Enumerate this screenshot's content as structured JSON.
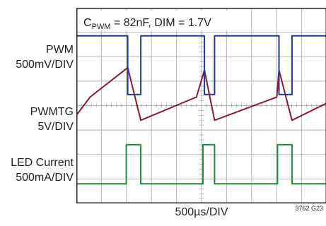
{
  "chart_data": {
    "type": "line",
    "annotation": {
      "base": "C",
      "sub": "PWM",
      "rest": " = 82nF, DIM = 1.7V"
    },
    "xlabel": "500µs/DIV",
    "figure_id": "3762 G23",
    "time_per_div_us": 500,
    "x_divisions": 10,
    "y_divisions": 8,
    "grid": true,
    "channels": [
      {
        "name_lines": [
          "PWM",
          "500mV/DIV"
        ],
        "color": "#8b1a2e",
        "points": [
          [
            0,
            -0.4
          ],
          [
            0.95,
            0.35
          ],
          [
            3.55,
            1.55
          ],
          [
            4.45,
            -0.6
          ],
          [
            8.3,
            0.35
          ],
          [
            8.85,
            1.45
          ],
          [
            9.55,
            -0.6
          ],
          [
            13.85,
            0.35
          ],
          [
            14.0,
            1.45
          ],
          [
            14.9,
            -0.6
          ],
          [
            17.3,
            0.1
          ]
        ]
      },
      {
        "name_lines": [
          "PWMTG",
          "5V/DIV"
        ],
        "color": "#1e3a93",
        "points": [
          [
            0,
            2.85
          ],
          [
            3.55,
            2.85
          ],
          [
            3.55,
            2.4
          ],
          [
            3.55,
            0.45
          ],
          [
            4.45,
            0.45
          ],
          [
            4.45,
            2.85
          ],
          [
            8.85,
            2.85
          ],
          [
            8.85,
            0.45
          ],
          [
            9.55,
            0.45
          ],
          [
            9.55,
            2.85
          ],
          [
            14.0,
            2.85
          ],
          [
            14.0,
            0.45
          ],
          [
            14.9,
            0.45
          ],
          [
            14.9,
            2.85
          ],
          [
            17.3,
            2.85
          ]
        ]
      },
      {
        "name_lines": [
          "LED Current",
          "500mA/DIV"
        ],
        "color": "#1f8a3c",
        "points": [
          [
            0,
            -3.2
          ],
          [
            3.45,
            -3.2
          ],
          [
            3.45,
            -1.6
          ],
          [
            4.45,
            -1.6
          ],
          [
            4.45,
            -3.2
          ],
          [
            8.75,
            -3.2
          ],
          [
            8.75,
            -1.6
          ],
          [
            9.55,
            -1.6
          ],
          [
            9.55,
            -3.2
          ],
          [
            13.9,
            -3.2
          ],
          [
            13.9,
            -1.6
          ],
          [
            14.9,
            -1.6
          ],
          [
            14.9,
            -3.2
          ],
          [
            17.3,
            -3.2
          ]
        ]
      }
    ]
  }
}
